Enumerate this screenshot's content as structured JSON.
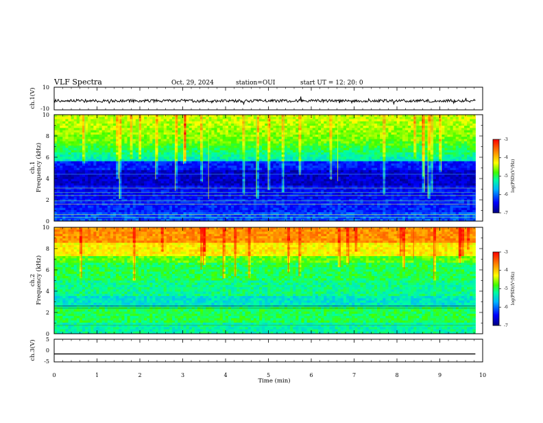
{
  "header": {
    "title": "VLF Spectra",
    "date": "Oct. 29, 2024",
    "station": "station=OUI",
    "start": "start  UT  =   12: 20: 0"
  },
  "chart_data": [
    {
      "id": "ch1-waveform",
      "type": "line",
      "ylabel": "ch.1(V)",
      "ylim": [
        -10,
        10
      ],
      "yticks": [
        "10",
        "-10"
      ],
      "xlim": [
        0,
        10
      ],
      "data_end_min": 9.83,
      "mean_value": -2,
      "noise_amplitude": 2.5
    },
    {
      "id": "ch1-spectrogram",
      "type": "heatmap",
      "ylabel_line1": "ch.1",
      "ylabel_line2": "Frequency (kHz)",
      "ylim": [
        0,
        10
      ],
      "yticks": [
        "0",
        "2",
        "4",
        "6",
        "8",
        "10"
      ],
      "xlim": [
        0,
        10
      ],
      "data_end_min": 9.83,
      "colorbar": {
        "range": [
          -7,
          -3
        ],
        "ticks": [
          "-3",
          "-4",
          "-5",
          "-6",
          "-7"
        ],
        "label": "log(PSD)(V²/Hz)"
      }
    },
    {
      "id": "ch2-spectrogram",
      "type": "heatmap",
      "ylabel_line1": "ch.2",
      "ylabel_line2": "Frequency (kHz)",
      "ylim": [
        0,
        10
      ],
      "yticks": [
        "0",
        "2",
        "4",
        "6",
        "8",
        "10"
      ],
      "xlim": [
        0,
        10
      ],
      "data_end_min": 9.83,
      "colorbar": {
        "range": [
          -7,
          -3
        ],
        "ticks": [
          "-3",
          "-4",
          "-5",
          "-6",
          "-7"
        ],
        "label": "log(PSD)(V²/Hz)"
      }
    },
    {
      "id": "ch3-waveform",
      "type": "line",
      "ylabel": "ch.3(V)",
      "ylim": [
        -5,
        5
      ],
      "yticks": [
        "5",
        "0",
        "-5"
      ],
      "xlim": [
        0,
        10
      ],
      "data_end_min": 9.83,
      "mean_value": -1.5
    }
  ],
  "xaxis": {
    "label": "Time (min)",
    "ticks": [
      "0",
      "1",
      "2",
      "3",
      "4",
      "5",
      "6",
      "7",
      "8",
      "9",
      "10"
    ]
  },
  "colors": {
    "colormap": [
      "#000080",
      "#0000ff",
      "#00b4ff",
      "#00ffa0",
      "#40ff00",
      "#ffff00",
      "#ff8000",
      "#ff0000"
    ],
    "trace": "#000000"
  }
}
